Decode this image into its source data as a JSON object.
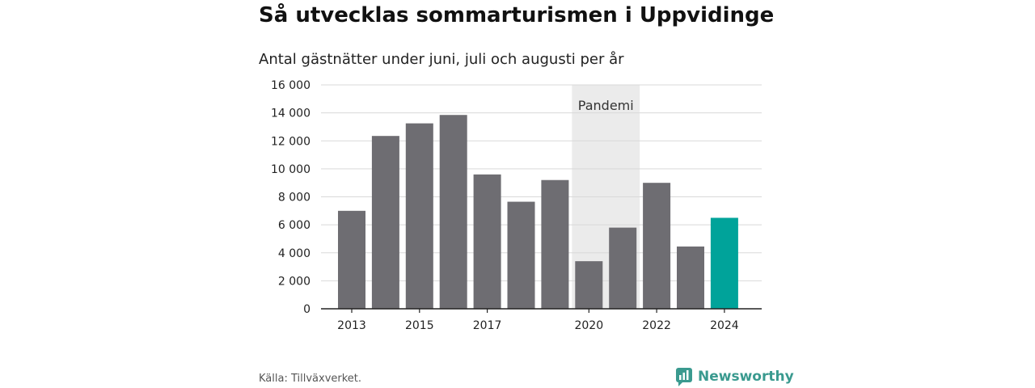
{
  "title": "Så utvecklas sommarturismen i Uppvidinge",
  "subtitle": "Antal gästnätter under juni, juli och augusti per år",
  "source": "Källa: Tillväxverket.",
  "brand": {
    "name": "Newsworthy",
    "icon": "newsworthy-logo-icon",
    "color": "#3a9a8f"
  },
  "colors": {
    "bar": "#6e6d72",
    "highlight": "#00a39a",
    "shade": "#ebebeb",
    "grid": "#d9d9d9"
  },
  "chart_data": {
    "type": "bar",
    "categories": [
      "2013",
      "2014",
      "2015",
      "2016",
      "2017",
      "2018",
      "2019",
      "2020",
      "2021",
      "2022",
      "2023",
      "2024"
    ],
    "values": [
      7000,
      12350,
      13250,
      13850,
      9600,
      7650,
      9200,
      3400,
      5800,
      9000,
      4450,
      6500
    ],
    "highlight_category": "2024",
    "x_tick_labels": [
      "2013",
      "2015",
      "2017",
      "2020",
      "2022",
      "2024"
    ],
    "y_ticks": [
      0,
      2000,
      4000,
      6000,
      8000,
      10000,
      12000,
      14000,
      16000
    ],
    "y_tick_labels": [
      "0",
      "2 000",
      "4 000",
      "6 000",
      "8 000",
      "10 000",
      "12 000",
      "14 000",
      "16 000"
    ],
    "ylim": [
      0,
      16000
    ],
    "grid": true,
    "annotation": {
      "label": "Pandemi",
      "from": "2020",
      "to": "2021"
    }
  }
}
